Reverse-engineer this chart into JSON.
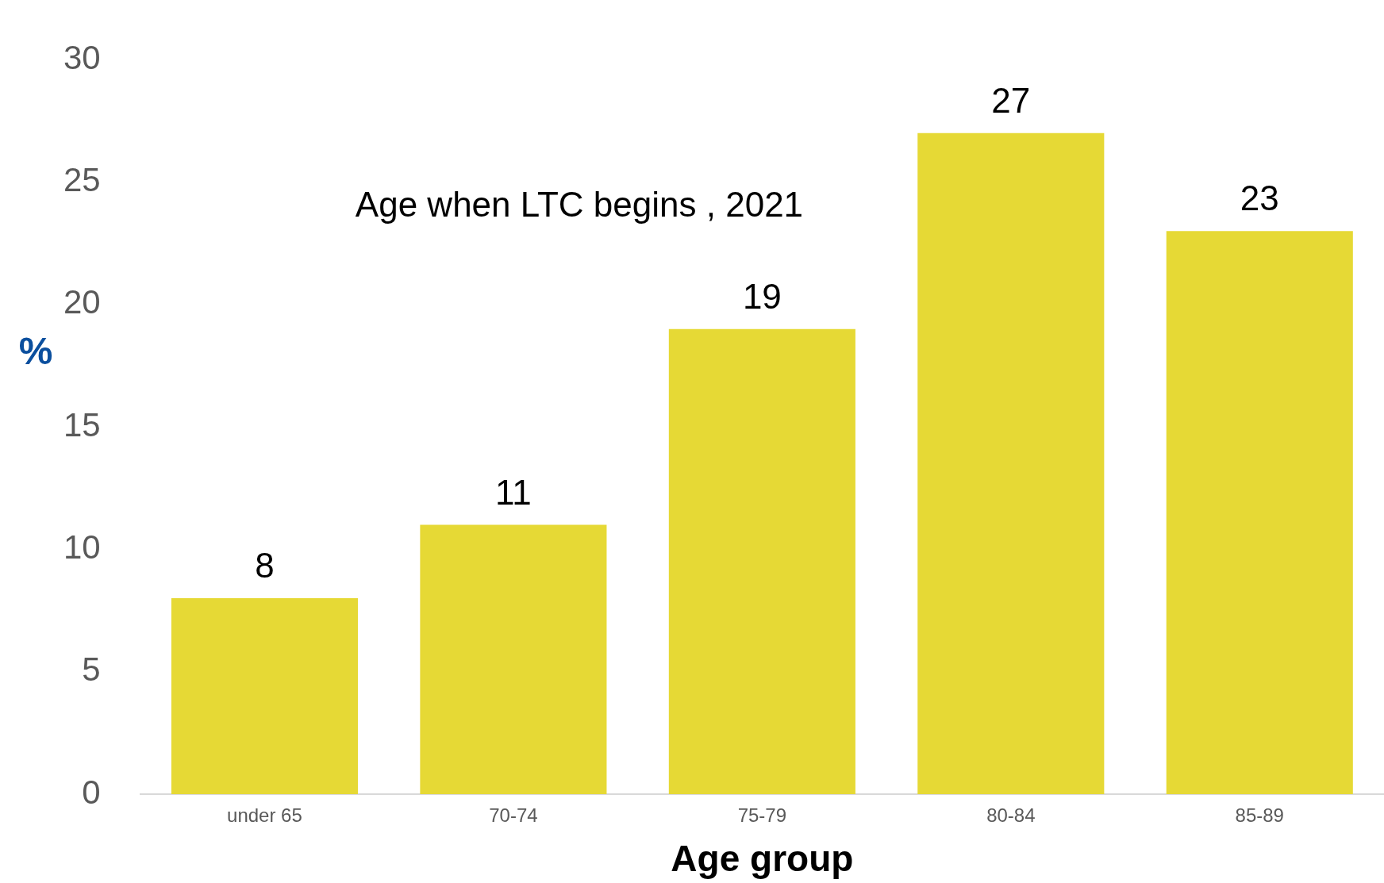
{
  "chart_data": {
    "type": "bar",
    "title": "Age when LTC begins , 2021",
    "xlabel": "Age group",
    "ylabel": "%",
    "categories": [
      "under 65",
      "70-74",
      "75-79",
      "80-84",
      "85-89"
    ],
    "values": [
      8,
      11,
      19,
      27,
      23
    ],
    "color": "#e6d935",
    "ylim": [
      0,
      30
    ],
    "yticks": [
      0,
      5,
      10,
      15,
      20,
      25,
      30
    ],
    "grid": false,
    "legend": false,
    "data_labels": true
  }
}
